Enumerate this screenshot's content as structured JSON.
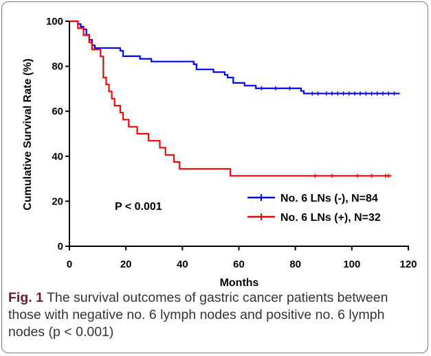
{
  "chart_data": {
    "type": "line",
    "step": true,
    "xlabel": "Months",
    "ylabel": "Cumulative Survival Rate (%)",
    "xlim": [
      0,
      120
    ],
    "ylim": [
      0,
      100
    ],
    "xticks": [
      0,
      20,
      40,
      60,
      80,
      100,
      120
    ],
    "yticks": [
      0,
      20,
      40,
      60,
      80,
      100
    ],
    "grid": false,
    "legend_position": "bottom-right",
    "annotation": "P < 0.001",
    "series": [
      {
        "name": "No. 6 LNs (-), N=84",
        "color": "#0000ff",
        "x": [
          0,
          3,
          4,
          5,
          6,
          7,
          8,
          9,
          18,
          19,
          25,
          29,
          44,
          45,
          51,
          55,
          56,
          58,
          62,
          66,
          82,
          83,
          117
        ],
        "y": [
          100,
          98.8,
          97.6,
          96.4,
          94.0,
          91.7,
          89.3,
          88.1,
          86.9,
          84.5,
          83.3,
          82.1,
          80.9,
          78.6,
          77.4,
          76.2,
          75.0,
          72.6,
          71.4,
          70.2,
          69.0,
          67.9,
          67.9
        ],
        "censored_x": [
          68,
          73,
          78,
          86,
          88,
          91,
          93,
          95,
          97,
          99,
          101,
          103,
          105,
          107,
          109,
          111,
          113,
          115
        ]
      },
      {
        "name": "No. 6 LNs (+), N=32",
        "color": "#ff0000",
        "x": [
          0,
          3,
          5,
          7,
          8,
          11,
          12,
          13,
          14,
          15,
          16,
          18,
          19,
          21,
          24,
          28,
          32,
          34,
          37,
          39,
          57,
          114
        ],
        "y": [
          100,
          96.9,
          93.8,
          90.6,
          87.5,
          84.4,
          75.0,
          71.9,
          68.8,
          65.6,
          62.5,
          59.4,
          56.3,
          53.1,
          50.0,
          46.9,
          43.8,
          40.6,
          37.5,
          34.4,
          31.3,
          31.3
        ],
        "censored_x": [
          87,
          93,
          102,
          107,
          112,
          113
        ]
      }
    ]
  },
  "caption": {
    "label": "Fig. 1",
    "text": "The survival outcomes of gastric cancer patients between those with negative no. 6 lymph nodes and positive no. 6 lymph nodes (p < 0.001)"
  }
}
